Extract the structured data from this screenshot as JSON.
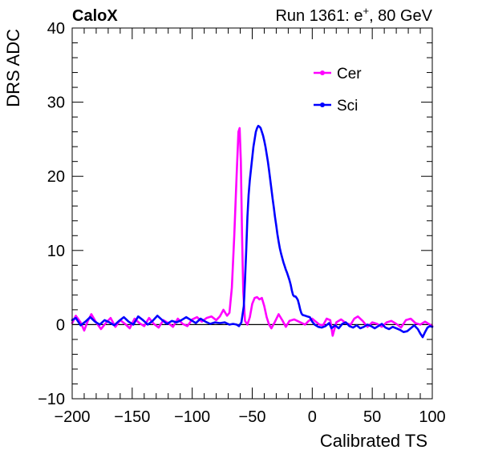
{
  "header": {
    "left": "CaloX",
    "run": "Run 1361: e",
    "run_sup": "+",
    "run_tail": ", 80 GeV"
  },
  "chart_data": {
    "type": "line",
    "title": "",
    "xlabel": "Calibrated TS",
    "ylabel": "DRS ADC",
    "xlim": [
      -200,
      100
    ],
    "ylim": [
      -10,
      40
    ],
    "x_ticks": [
      -200,
      -150,
      -100,
      -50,
      0,
      50,
      100
    ],
    "x_tick_labels": [
      "−200",
      "−150",
      "−100",
      "−50",
      "0",
      "50",
      "100"
    ],
    "y_ticks": [
      -10,
      0,
      10,
      20,
      30,
      40
    ],
    "y_tick_labels": [
      "−10",
      "0",
      "10",
      "20",
      "30",
      "40"
    ],
    "reference_line_y": 0,
    "legend_position": "top-right",
    "series": [
      {
        "name": "Cer",
        "color": "#ff00ff",
        "points": [
          [
            -200,
            0.2
          ],
          [
            -197,
            1.2
          ],
          [
            -193,
            0.3
          ],
          [
            -190,
            -0.8
          ],
          [
            -187,
            0.5
          ],
          [
            -184,
            1.4
          ],
          [
            -180,
            0.3
          ],
          [
            -176,
            -0.6
          ],
          [
            -172,
            0.2
          ],
          [
            -168,
            0.9
          ],
          [
            -164,
            -0.3
          ],
          [
            -160,
            0.6
          ],
          [
            -156,
            0.1
          ],
          [
            -152,
            -0.5
          ],
          [
            -148,
            0.8
          ],
          [
            -144,
            0.2
          ],
          [
            -140,
            -0.2
          ],
          [
            -136,
            0.9
          ],
          [
            -132,
            0.1
          ],
          [
            -128,
            -0.4
          ],
          [
            -124,
            0.6
          ],
          [
            -120,
            0.2
          ],
          [
            -116,
            -0.3
          ],
          [
            -112,
            0.8
          ],
          [
            -108,
            0.1
          ],
          [
            -104,
            -0.2
          ],
          [
            -100,
            0.7
          ],
          [
            -96,
            1.0
          ],
          [
            -92,
            0.4
          ],
          [
            -88,
            0.9
          ],
          [
            -84,
            1.1
          ],
          [
            -80,
            0.6
          ],
          [
            -77,
            1.1
          ],
          [
            -74,
            2.0
          ],
          [
            -71,
            1.2
          ],
          [
            -69,
            1.6
          ],
          [
            -67,
            5.0
          ],
          [
            -65,
            12.0
          ],
          [
            -63,
            20.0
          ],
          [
            -61.5,
            26.0
          ],
          [
            -60.5,
            26.5
          ],
          [
            -59.5,
            22.0
          ],
          [
            -58.5,
            12.0
          ],
          [
            -57.5,
            4.5
          ],
          [
            -56,
            0.5
          ],
          [
            -54,
            0.0
          ],
          [
            -52,
            1.0
          ],
          [
            -50,
            2.8
          ],
          [
            -48,
            3.6
          ],
          [
            -46,
            3.7
          ],
          [
            -44,
            3.4
          ],
          [
            -42,
            3.6
          ],
          [
            -40,
            2.5
          ],
          [
            -38,
            1.0
          ],
          [
            -36,
            0.0
          ],
          [
            -34,
            -0.5
          ],
          [
            -31,
            0.4
          ],
          [
            -28,
            1.4
          ],
          [
            -25,
            0.6
          ],
          [
            -22,
            -0.3
          ],
          [
            -19,
            0.5
          ],
          [
            -15,
            0.7
          ],
          [
            -10,
            0.3
          ],
          [
            -6,
            0.0
          ],
          [
            -3,
            0.5
          ],
          [
            0,
            0.8
          ],
          [
            3,
            0.4
          ],
          [
            6,
            0.0
          ],
          [
            9,
            -0.1
          ],
          [
            12,
            0.8
          ],
          [
            15,
            0.6
          ],
          [
            17,
            -1.5
          ],
          [
            20,
            0.3
          ],
          [
            24,
            0.7
          ],
          [
            28,
            0.2
          ],
          [
            32,
            0.0
          ],
          [
            35,
            0.8
          ],
          [
            38,
            1.1
          ],
          [
            42,
            0.5
          ],
          [
            46,
            -0.3
          ],
          [
            50,
            0.3
          ],
          [
            54,
            0.1
          ],
          [
            58,
            -0.3
          ],
          [
            62,
            0.3
          ],
          [
            66,
            0.5
          ],
          [
            70,
            0.1
          ],
          [
            74,
            -0.4
          ],
          [
            78,
            0.6
          ],
          [
            82,
            0.8
          ],
          [
            86,
            0.2
          ],
          [
            90,
            0.0
          ],
          [
            94,
            0.4
          ],
          [
            98,
            0.0
          ],
          [
            100,
            -0.2
          ]
        ]
      },
      {
        "name": "Sci",
        "color": "#0000ff",
        "points": [
          [
            -200,
            0.6
          ],
          [
            -197,
            0.9
          ],
          [
            -193,
            -0.1
          ],
          [
            -189,
            0.4
          ],
          [
            -185,
            1.0
          ],
          [
            -181,
            0.4
          ],
          [
            -177,
            0.0
          ],
          [
            -173,
            0.6
          ],
          [
            -169,
            0.3
          ],
          [
            -165,
            -0.1
          ],
          [
            -161,
            0.5
          ],
          [
            -157,
            1.0
          ],
          [
            -153,
            0.4
          ],
          [
            -149,
            0.0
          ],
          [
            -145,
            1.1
          ],
          [
            -141,
            0.6
          ],
          [
            -137,
            0.0
          ],
          [
            -133,
            0.5
          ],
          [
            -129,
            1.2
          ],
          [
            -125,
            0.6
          ],
          [
            -121,
            0.1
          ],
          [
            -117,
            0.5
          ],
          [
            -113,
            0.3
          ],
          [
            -109,
            0.6
          ],
          [
            -105,
            1.0
          ],
          [
            -101,
            0.6
          ],
          [
            -97,
            0.2
          ],
          [
            -93,
            0.8
          ],
          [
            -89,
            0.4
          ],
          [
            -85,
            0.1
          ],
          [
            -81,
            0.3
          ],
          [
            -77,
            0.2
          ],
          [
            -73,
            0.3
          ],
          [
            -69,
            0.0
          ],
          [
            -66,
            0.1
          ],
          [
            -63,
            0.0
          ],
          [
            -61,
            -0.2
          ],
          [
            -59,
            0.3
          ],
          [
            -57,
            2.5
          ],
          [
            -56,
            6.0
          ],
          [
            -55,
            10.0
          ],
          [
            -54,
            14.5
          ],
          [
            -53,
            17.5
          ],
          [
            -52,
            19.5
          ],
          [
            -51,
            21.0
          ],
          [
            -50,
            22.5
          ],
          [
            -49,
            24.0
          ],
          [
            -48,
            25.0
          ],
          [
            -47,
            26.0
          ],
          [
            -46,
            26.5
          ],
          [
            -45,
            26.8
          ],
          [
            -44,
            26.7
          ],
          [
            -43,
            26.5
          ],
          [
            -42,
            26.0
          ],
          [
            -41,
            25.5
          ],
          [
            -40,
            24.8
          ],
          [
            -39,
            24.0
          ],
          [
            -38,
            23.0
          ],
          [
            -37,
            22.0
          ],
          [
            -36,
            20.8
          ],
          [
            -35,
            19.5
          ],
          [
            -34,
            18.3
          ],
          [
            -33,
            17.0
          ],
          [
            -32,
            15.8
          ],
          [
            -31,
            14.5
          ],
          [
            -30,
            13.4
          ],
          [
            -29,
            12.2
          ],
          [
            -28,
            11.2
          ],
          [
            -27,
            10.3
          ],
          [
            -26,
            9.6
          ],
          [
            -25,
            9.0
          ],
          [
            -24,
            8.4
          ],
          [
            -23,
            7.9
          ],
          [
            -22,
            7.4
          ],
          [
            -21,
            7.0
          ],
          [
            -20,
            6.5
          ],
          [
            -19,
            6.0
          ],
          [
            -18,
            5.4
          ],
          [
            -17,
            4.6
          ],
          [
            -16,
            4.0
          ],
          [
            -15,
            3.8
          ],
          [
            -14,
            3.8
          ],
          [
            -13,
            3.6
          ],
          [
            -12,
            3.3
          ],
          [
            -11,
            2.7
          ],
          [
            -10,
            2.0
          ],
          [
            -9,
            1.5
          ],
          [
            -8,
            1.3
          ],
          [
            -6,
            1.2
          ],
          [
            -4,
            1.1
          ],
          [
            -2,
            1.0
          ],
          [
            0,
            0.4
          ],
          [
            2,
            0.0
          ],
          [
            5,
            -0.3
          ],
          [
            8,
            -0.4
          ],
          [
            11,
            -0.2
          ],
          [
            14,
            0.2
          ],
          [
            16,
            -0.5
          ],
          [
            19,
            -0.1
          ],
          [
            22,
            -0.5
          ],
          [
            25,
            0.1
          ],
          [
            28,
            0.3
          ],
          [
            31,
            -0.2
          ],
          [
            34,
            -0.4
          ],
          [
            37,
            -0.1
          ],
          [
            40,
            -0.5
          ],
          [
            43,
            -0.3
          ],
          [
            46,
            0.0
          ],
          [
            49,
            -0.2
          ],
          [
            52,
            -0.5
          ],
          [
            55,
            -0.2
          ],
          [
            58,
            0.1
          ],
          [
            61,
            -0.4
          ],
          [
            64,
            -0.6
          ],
          [
            67,
            -0.3
          ],
          [
            70,
            -0.5
          ],
          [
            73,
            -0.7
          ],
          [
            76,
            -1.0
          ],
          [
            79,
            -0.9
          ],
          [
            82,
            -0.5
          ],
          [
            85,
            -0.1
          ],
          [
            88,
            -0.6
          ],
          [
            90,
            -1.2
          ],
          [
            92,
            -1.7
          ],
          [
            94,
            -1.0
          ],
          [
            96,
            -0.4
          ],
          [
            98,
            -0.2
          ],
          [
            100,
            -0.3
          ]
        ]
      }
    ]
  }
}
